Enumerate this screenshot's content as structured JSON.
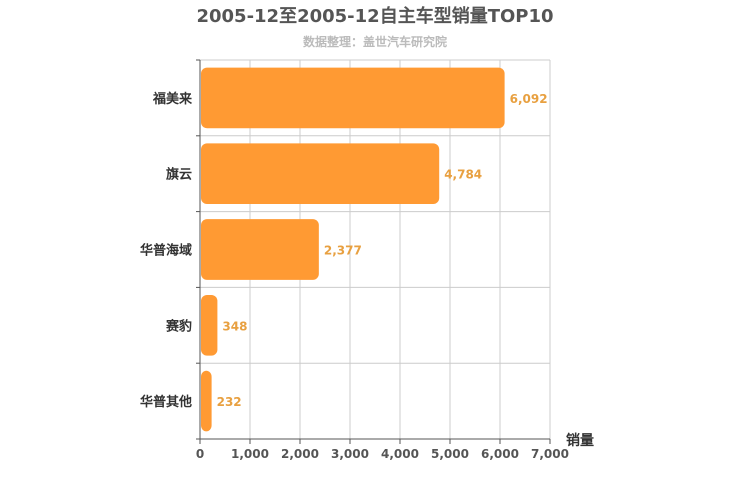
{
  "chart_data": {
    "type": "bar",
    "orientation": "horizontal",
    "title": "2005-12至2005-12自主车型销量TOP10",
    "subtitle": "数据整理：盖世汽车研究院",
    "categories": [
      "福美来",
      "旗云",
      "华普海域",
      "赛豹",
      "华普其他"
    ],
    "values": [
      6092,
      4784,
      2377,
      348,
      232
    ],
    "value_labels": [
      "6,092",
      "4,784",
      "2,377",
      "348",
      "232"
    ],
    "xlabel": "销量",
    "ylabel": "",
    "xlim": [
      0,
      7000
    ],
    "xticks": [
      0,
      1000,
      2000,
      3000,
      4000,
      5000,
      6000,
      7000
    ],
    "xtick_labels": [
      "0",
      "1,000",
      "2,000",
      "3,000",
      "4,000",
      "5,000",
      "6,000",
      "7,000"
    ],
    "grid": true,
    "colors": {
      "bar": "#ff9a33",
      "value_label": "#e8a040",
      "grid": "#cccccc",
      "axis": "#555555"
    }
  }
}
